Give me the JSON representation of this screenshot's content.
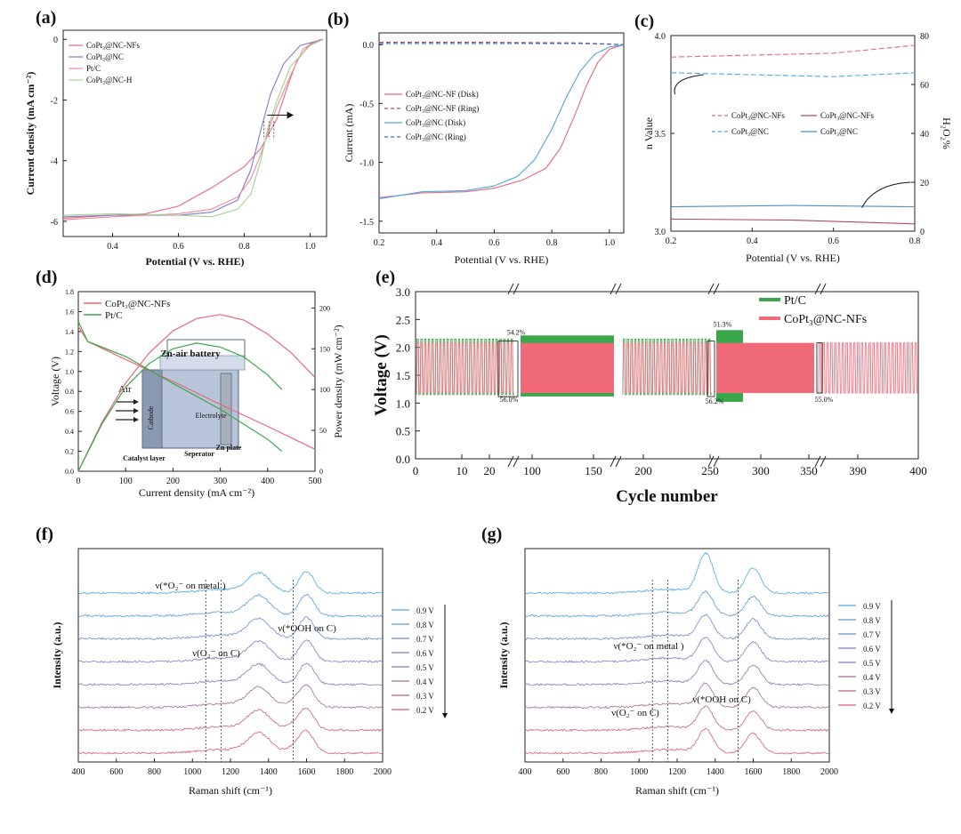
{
  "colors": {
    "red": "#e8677a",
    "blue": "#4aa8e0",
    "purple": "#7e7ec8",
    "green": "#3aa84a",
    "lightgreen": "#9fd48e",
    "maroon": "#b04b6a"
  },
  "panel_labels": [
    "(a)",
    "(b)",
    "(c)",
    "(d)",
    "(e)",
    "(f)",
    "(g)"
  ],
  "chart_data": [
    {
      "panel": "(a)",
      "type": "line",
      "xlabel": "Potential (V vs. RHE)",
      "ylabel": "Current density (mA cm⁻²)",
      "xlim": [
        0.25,
        1.05
      ],
      "ylim": [
        -6.5,
        0.3
      ],
      "xticks": [
        "0.4",
        "0.6",
        "0.8",
        "1.0"
      ],
      "yticks": [
        "0",
        "-2",
        "-4",
        "-6"
      ],
      "legend_position": "top-left",
      "series": [
        {
          "name": "CoPt₃@NC-NFs",
          "color": "#e8677a",
          "points": [
            [
              0.25,
              -5.9
            ],
            [
              0.4,
              -5.8
            ],
            [
              0.5,
              -5.75
            ],
            [
              0.6,
              -5.5
            ],
            [
              0.7,
              -4.9
            ],
            [
              0.8,
              -4.2
            ],
            [
              0.85,
              -3.6
            ],
            [
              0.9,
              -2.6
            ],
            [
              0.93,
              -1.6
            ],
            [
              0.96,
              -0.7
            ],
            [
              1.0,
              -0.15
            ],
            [
              1.04,
              0
            ]
          ]
        },
        {
          "name": "CoPt₃@NC",
          "color": "#7e7ec8",
          "points": [
            [
              0.25,
              -5.85
            ],
            [
              0.4,
              -5.8
            ],
            [
              0.6,
              -5.8
            ],
            [
              0.7,
              -5.7
            ],
            [
              0.78,
              -5.3
            ],
            [
              0.82,
              -4.3
            ],
            [
              0.85,
              -3.0
            ],
            [
              0.88,
              -1.8
            ],
            [
              0.92,
              -0.8
            ],
            [
              0.97,
              -0.2
            ],
            [
              1.04,
              0
            ]
          ]
        },
        {
          "name": "Pt/C",
          "color": "#f08aa0",
          "points": [
            [
              0.25,
              -5.95
            ],
            [
              0.4,
              -5.85
            ],
            [
              0.6,
              -5.75
            ],
            [
              0.7,
              -5.6
            ],
            [
              0.78,
              -5.2
            ],
            [
              0.82,
              -4.6
            ],
            [
              0.85,
              -3.8
            ],
            [
              0.88,
              -2.8
            ],
            [
              0.9,
              -2.2
            ],
            [
              0.94,
              -1.2
            ],
            [
              0.98,
              -0.3
            ],
            [
              1.03,
              0
            ]
          ]
        },
        {
          "name": "CoPt₃@NC-H",
          "color": "#9fd48e",
          "points": [
            [
              0.25,
              -5.8
            ],
            [
              0.4,
              -5.75
            ],
            [
              0.6,
              -5.8
            ],
            [
              0.7,
              -5.85
            ],
            [
              0.78,
              -5.6
            ],
            [
              0.82,
              -5.1
            ],
            [
              0.85,
              -4.0
            ],
            [
              0.87,
              -3.0
            ],
            [
              0.9,
              -2.0
            ],
            [
              0.94,
              -0.9
            ],
            [
              1.0,
              -0.2
            ],
            [
              1.04,
              0
            ]
          ]
        }
      ]
    },
    {
      "panel": "(b)",
      "type": "line",
      "xlabel": "Potential (V vs. RHE)",
      "ylabel": "Current (mA)",
      "xlim": [
        0.2,
        1.05
      ],
      "ylim": [
        -1.6,
        0.1
      ],
      "xticks": [
        "0.2",
        "0.4",
        "0.6",
        "0.8",
        "1.0"
      ],
      "yticks": [
        "0.0",
        "-0.5",
        "-1.0",
        "-1.5"
      ],
      "legend_position": "center-left",
      "series": [
        {
          "name": "CoPt₃@NC-NF (Disk)",
          "color": "#e8677a",
          "dash": false,
          "points": [
            [
              0.2,
              -1.3
            ],
            [
              0.35,
              -1.26
            ],
            [
              0.5,
              -1.25
            ],
            [
              0.6,
              -1.22
            ],
            [
              0.7,
              -1.15
            ],
            [
              0.78,
              -1.05
            ],
            [
              0.83,
              -0.88
            ],
            [
              0.88,
              -0.6
            ],
            [
              0.92,
              -0.35
            ],
            [
              0.96,
              -0.15
            ],
            [
              1.0,
              -0.04
            ],
            [
              1.05,
              0
            ]
          ]
        },
        {
          "name": "CoPt₃@NC-NF (Ring)",
          "color": "#b04b6a",
          "dash": true,
          "points": [
            [
              0.2,
              0.02
            ],
            [
              0.6,
              0.02
            ],
            [
              0.9,
              0.015
            ],
            [
              1.05,
              0
            ]
          ]
        },
        {
          "name": "CoPt₃@NC (Disk)",
          "color": "#4aa8e0",
          "dash": false,
          "points": [
            [
              0.2,
              -1.31
            ],
            [
              0.35,
              -1.25
            ],
            [
              0.5,
              -1.24
            ],
            [
              0.6,
              -1.2
            ],
            [
              0.68,
              -1.12
            ],
            [
              0.74,
              -0.98
            ],
            [
              0.8,
              -0.72
            ],
            [
              0.85,
              -0.45
            ],
            [
              0.9,
              -0.22
            ],
            [
              0.95,
              -0.08
            ],
            [
              1.0,
              -0.02
            ],
            [
              1.05,
              0
            ]
          ]
        },
        {
          "name": "CoPt₃@NC (Ring)",
          "color": "#3a6ec8",
          "dash": true,
          "points": [
            [
              0.2,
              0.01
            ],
            [
              0.6,
              0.01
            ],
            [
              0.9,
              0.01
            ],
            [
              1.05,
              0
            ]
          ]
        }
      ]
    },
    {
      "panel": "(c)",
      "type": "line",
      "xlabel": "Potential (V vs. RHE)",
      "ylabel": "n Value",
      "ylabel_right": "H₂O₂%",
      "xlim": [
        0.2,
        0.8
      ],
      "ylim": [
        3.0,
        4.0
      ],
      "ylim_right": [
        0,
        80
      ],
      "xticks": [
        "0.2",
        "0.4",
        "0.6",
        "0.8"
      ],
      "yticks": [
        "3.0",
        "3.5",
        "4.0"
      ],
      "yticks_right": [
        "0",
        "20",
        "40",
        "60",
        "80"
      ],
      "legend_position": "center",
      "series": [
        {
          "name": "CoPt₃@NC-NFs",
          "axis": "left",
          "color": "#e8677a",
          "dash": true,
          "points": [
            [
              0.2,
              3.89
            ],
            [
              0.4,
              3.9
            ],
            [
              0.6,
              3.91
            ],
            [
              0.8,
              3.95
            ]
          ]
        },
        {
          "name": "CoPt₃@NC",
          "axis": "left",
          "color": "#4aa8e0",
          "dash": true,
          "points": [
            [
              0.2,
              3.81
            ],
            [
              0.4,
              3.8
            ],
            [
              0.6,
              3.79
            ],
            [
              0.8,
              3.81
            ]
          ]
        },
        {
          "name": "CoPt₃@NC-NFs",
          "axis": "right",
          "color": "#b04b6a",
          "dash": false,
          "points": [
            [
              0.2,
              5
            ],
            [
              0.5,
              4.5
            ],
            [
              0.8,
              3
            ]
          ]
        },
        {
          "name": "CoPt₃@NC",
          "axis": "right",
          "color": "#4a8ec0",
          "dash": false,
          "points": [
            [
              0.2,
              10
            ],
            [
              0.5,
              10.5
            ],
            [
              0.8,
              10
            ]
          ]
        }
      ]
    },
    {
      "panel": "(d)",
      "type": "line",
      "xlabel": "Current density (mA cm⁻²)",
      "ylabel": "Voltage (V)",
      "ylabel_right": "Power density (mW cm⁻²)",
      "xlim": [
        0,
        500
      ],
      "ylim": [
        0,
        1.8
      ],
      "ylim_right": [
        0,
        220
      ],
      "xticks": [
        "0",
        "100",
        "200",
        "300",
        "400",
        "500"
      ],
      "yticks": [
        "0.0",
        "0.2",
        "0.4",
        "0.6",
        "0.8",
        "1.0",
        "1.2",
        "1.4",
        "1.6",
        "1.8"
      ],
      "yticks_right": [
        "0",
        "50",
        "100",
        "150",
        "200"
      ],
      "legend_position": "top-left",
      "inset_labels": [
        "Zn-air battery",
        "Air",
        "Cathode",
        "Electrolyte",
        "Catalyst layer",
        "Seperator",
        "Zn plate"
      ],
      "series": [
        {
          "name": "CoPt₃@NC-NFs",
          "kind": "voltage",
          "color": "#e8677a",
          "points": [
            [
              0,
              1.45
            ],
            [
              20,
              1.3
            ],
            [
              100,
              1.12
            ],
            [
              200,
              0.9
            ],
            [
              300,
              0.67
            ],
            [
              400,
              0.45
            ],
            [
              500,
              0.22
            ]
          ]
        },
        {
          "name": "Pt/C",
          "kind": "voltage",
          "color": "#3aa84a",
          "points": [
            [
              0,
              1.5
            ],
            [
              20,
              1.3
            ],
            [
              100,
              1.15
            ],
            [
              200,
              0.88
            ],
            [
              300,
              0.62
            ],
            [
              400,
              0.32
            ],
            [
              430,
              0.2
            ]
          ]
        },
        {
          "name": "CoPt₃@NC-NFs",
          "kind": "power",
          "color": "#e8677a",
          "points": [
            [
              0,
              0
            ],
            [
              50,
              60
            ],
            [
              100,
              108
            ],
            [
              150,
              145
            ],
            [
              200,
              172
            ],
            [
              250,
              187
            ],
            [
              300,
              192
            ],
            [
              350,
              185
            ],
            [
              400,
              168
            ],
            [
              450,
              145
            ],
            [
              500,
              115
            ]
          ]
        },
        {
          "name": "Pt/C",
          "kind": "power",
          "color": "#3aa84a",
          "points": [
            [
              0,
              0
            ],
            [
              50,
              58
            ],
            [
              100,
              103
            ],
            [
              150,
              132
            ],
            [
              200,
              150
            ],
            [
              250,
              157
            ],
            [
              300,
              152
            ],
            [
              350,
              140
            ],
            [
              400,
              118
            ],
            [
              430,
              100
            ]
          ]
        }
      ]
    },
    {
      "panel": "(e)",
      "type": "line",
      "xlabel": "Cycle number",
      "ylabel": "Voltage (V)",
      "ylim": [
        0.0,
        3.0
      ],
      "xticks": [
        "0",
        "10",
        "20",
        "100",
        "150",
        "200",
        "250",
        "300",
        "350",
        "390",
        "400"
      ],
      "yticks": [
        "0.0",
        "0.5",
        "1.0",
        "1.5",
        "2.0",
        "2.5",
        "3.0"
      ],
      "legend_position": "top-right",
      "annotations": [
        "54.2%",
        "51.3%",
        "56.0%",
        "56.2%",
        "55.0%"
      ],
      "series": [
        {
          "name": "Pt/C",
          "color": "#3aa84a",
          "charge": 2.15,
          "discharge": 1.15
        },
        {
          "name": "CoPt₃@NC-NFs",
          "color": "#f06a7a",
          "charge": 2.08,
          "discharge": 1.18
        }
      ]
    },
    {
      "panel": "(f)",
      "type": "line",
      "xlabel": "Raman shift (cm⁻¹)",
      "ylabel": "Intensity (a.u.)",
      "xlim": [
        400,
        2000
      ],
      "xticks": [
        "400",
        "600",
        "800",
        "1000",
        "1200",
        "1400",
        "1600",
        "1800",
        "2000"
      ],
      "legend_position": "right",
      "annotations": [
        "ν(*O₂⁻ on metal )",
        "ν(O₂⁻ on C)",
        "ν(*OOH on C)"
      ],
      "marker_positions": [
        1070,
        1150,
        1530
      ],
      "series": [
        {
          "name": "0.9 V",
          "color": "#4aa8e0"
        },
        {
          "name": "0.8 V",
          "color": "#5a9ad8"
        },
        {
          "name": "0.7 V",
          "color": "#6a8cd0"
        },
        {
          "name": "0.6 V",
          "color": "#7a80c6"
        },
        {
          "name": "0.5 V",
          "color": "#8a76b8"
        },
        {
          "name": "0.4 V",
          "color": "#a06c9c"
        },
        {
          "name": "0.3 V",
          "color": "#c06080"
        },
        {
          "name": "0.2 V",
          "color": "#e05a6e"
        }
      ]
    },
    {
      "panel": "(g)",
      "type": "line",
      "xlabel": "Raman shift (cm⁻¹)",
      "ylabel": "Intensity (a.u.)",
      "xlim": [
        400,
        2000
      ],
      "xticks": [
        "400",
        "600",
        "800",
        "1000",
        "1200",
        "1400",
        "1600",
        "1800",
        "2000"
      ],
      "legend_position": "right",
      "annotations": [
        "ν(*O₂⁻ on metal )",
        "ν(O₂⁻ on C)",
        "ν(*OOH on C)"
      ],
      "marker_positions": [
        1070,
        1150,
        1520
      ],
      "series": [
        {
          "name": "0.9 V",
          "color": "#4aa8e0"
        },
        {
          "name": "0.8 V",
          "color": "#5a9ad8"
        },
        {
          "name": "0.7 V",
          "color": "#6a8cd0"
        },
        {
          "name": "0.6 V",
          "color": "#7a80c6"
        },
        {
          "name": "0.5 V",
          "color": "#8a76b8"
        },
        {
          "name": "0.4 V",
          "color": "#a06c9c"
        },
        {
          "name": "0.3 V",
          "color": "#c06080"
        },
        {
          "name": "0.2 V",
          "color": "#e05a6e"
        }
      ]
    }
  ]
}
